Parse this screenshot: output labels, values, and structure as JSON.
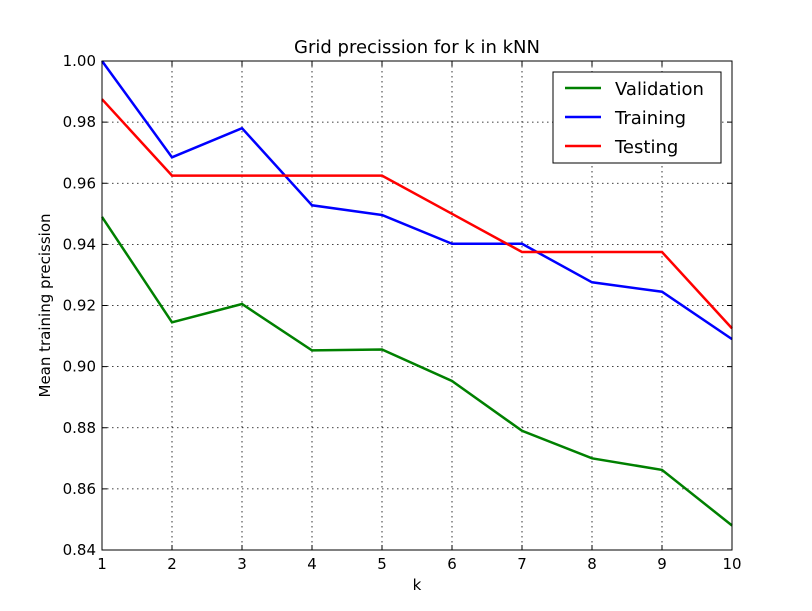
{
  "chart_data": {
    "type": "line",
    "title": "Grid precission for k in kNN",
    "xlabel": "k",
    "ylabel": "Mean training precission",
    "x": [
      1,
      2,
      3,
      4,
      5,
      6,
      7,
      8,
      9,
      10
    ],
    "xlim": [
      1,
      10
    ],
    "ylim": [
      0.84,
      1.0
    ],
    "xticks": [
      1,
      2,
      3,
      4,
      5,
      6,
      7,
      8,
      9,
      10
    ],
    "xtick_labels": [
      "1",
      "2",
      "3",
      "4",
      "5",
      "6",
      "7",
      "8",
      "9",
      "10"
    ],
    "yticks": [
      0.84,
      0.86,
      0.88,
      0.9,
      0.92,
      0.94,
      0.96,
      0.98,
      1.0
    ],
    "ytick_labels": [
      "0.84",
      "0.86",
      "0.88",
      "0.90",
      "0.92",
      "0.94",
      "0.96",
      "0.98",
      "1.00"
    ],
    "grid": true,
    "legend_position": "top-right",
    "series": [
      {
        "name": "Validation",
        "color": "#008000",
        "values": [
          0.949,
          0.9145,
          0.9205,
          0.9053,
          0.9056,
          0.8953,
          0.879,
          0.87,
          0.8662,
          0.848
        ]
      },
      {
        "name": "Training",
        "color": "#0000ff",
        "values": [
          1.0,
          0.9685,
          0.978,
          0.9528,
          0.9496,
          0.9402,
          0.9402,
          0.9276,
          0.9245,
          0.909
        ]
      },
      {
        "name": "Testing",
        "color": "#ff0000",
        "values": [
          0.9875,
          0.9625,
          0.9625,
          0.9625,
          0.9625,
          0.95,
          0.9375,
          0.9375,
          0.9375,
          0.9125
        ]
      }
    ]
  }
}
